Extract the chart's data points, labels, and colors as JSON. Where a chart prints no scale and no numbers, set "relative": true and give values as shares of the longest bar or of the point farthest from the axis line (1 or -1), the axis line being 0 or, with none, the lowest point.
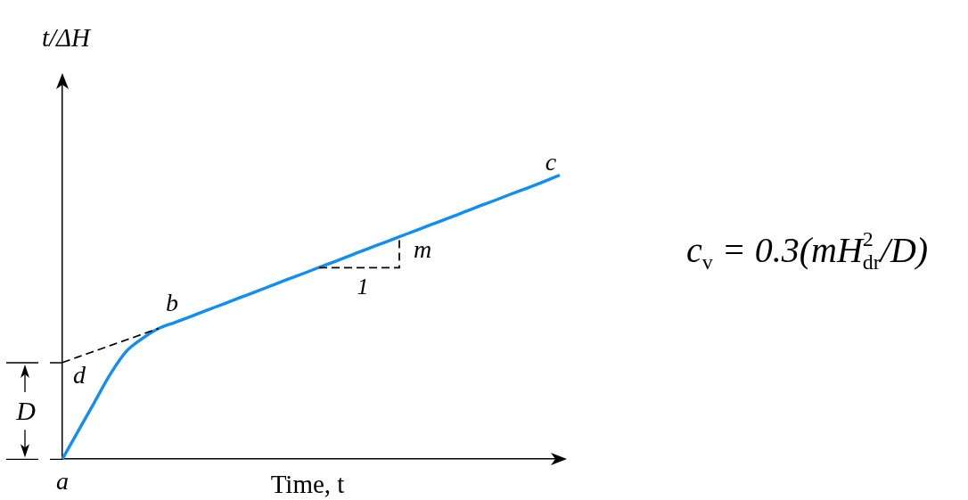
{
  "chart_data": {
    "type": "line",
    "xlabel": "Time, t",
    "ylabel": "t/ΔH",
    "relative": true,
    "categories": [
      null,
      null,
      null,
      null,
      null,
      null,
      null,
      null,
      null,
      null,
      null,
      null,
      null,
      null,
      null,
      null,
      null,
      null,
      null,
      null,
      null,
      null,
      null,
      null,
      null,
      null,
      null,
      null,
      null,
      null,
      null,
      null
    ],
    "series": [
      {
        "color": "#118ef2",
        "line_style": "solid",
        "values": [
          0,
          0.1,
          0.2,
          0.3,
          0.38,
          0.425,
          0.46,
          0.481,
          0.502,
          0.524,
          0.545,
          0.567,
          0.588,
          0.61,
          0.632,
          0.653,
          0.675,
          0.696,
          0.718,
          0.74,
          0.761,
          0.783,
          0.804,
          0.826,
          0.847,
          0.869,
          0.891,
          0.912,
          0.934,
          0.955,
          0.977,
          1
        ]
      },
      {
        "color": "#000000",
        "line_style": "dashed",
        "values": [
          0.34,
          0.36,
          0.38,
          0.4,
          0.42,
          0.44,
          0.46,
          null,
          null,
          null,
          null,
          null,
          null,
          null,
          null,
          null,
          null,
          null,
          null,
          null,
          null,
          null,
          null,
          null,
          null,
          null,
          null,
          null,
          null,
          null,
          null,
          null
        ]
      }
    ],
    "annotations": [
      "c",
      "m",
      "1",
      "b",
      "d",
      "D",
      "a",
      "c$_{v}$ = 0.3(mH$_{dr}$$^{2}$/D)"
    ],
    "grid": false,
    "legend": false,
    "marker": "none"
  }
}
